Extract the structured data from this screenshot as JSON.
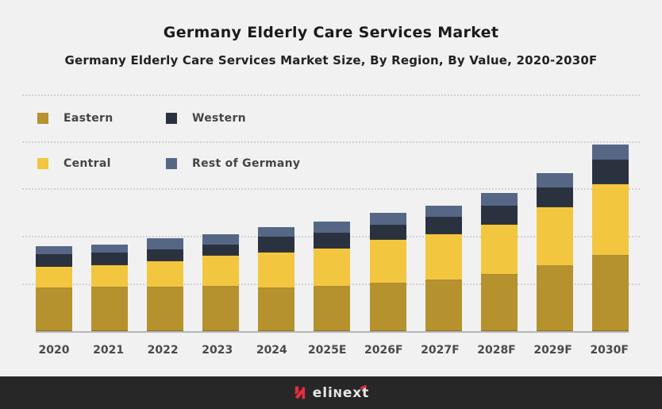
{
  "header": {
    "title": "Germany Elderly Care Services Market",
    "subtitle": "Germany Elderly Care Services Market Size, By Region, By Value, 2020-2030F"
  },
  "legend": {
    "items": [
      {
        "label": "Eastern",
        "color": "#b5922d"
      },
      {
        "label": "Western",
        "color": "#2b323f"
      },
      {
        "label": "Central",
        "color": "#f3c640"
      },
      {
        "label": "Rest of Germany",
        "color": "#566786"
      }
    ]
  },
  "chart_data": {
    "type": "bar",
    "stacked": true,
    "title": "Germany Elderly Care Services Market",
    "subtitle": "Germany Elderly Care Services Market Size, By Region, By Value, 2020-2030F",
    "xlabel": "",
    "ylabel": "",
    "value_units": "relative height units (y-axis is unlabeled in the figure; values estimated from bar pixel heights, 1 unit = 1 px)",
    "grid": "horizontal dotted gridlines, no y-axis tick labels",
    "legend_position": "top-left inside plot area, two rows",
    "categories": [
      "2020",
      "2021",
      "2022",
      "2023",
      "2024",
      "2025E",
      "2026F",
      "2027F",
      "2028F",
      "2029F",
      "2030F"
    ],
    "series": [
      {
        "name": "Eastern",
        "color": "#b5922d",
        "values": [
          54,
          55,
          55,
          56,
          54,
          56,
          60,
          64,
          71,
          82,
          95
        ]
      },
      {
        "name": "Central",
        "color": "#f3c640",
        "values": [
          27,
          28,
          33,
          39,
          45,
          48,
          55,
          58,
          63,
          74,
          90
        ]
      },
      {
        "name": "Western",
        "color": "#2b323f",
        "values": [
          16,
          16,
          15,
          14,
          20,
          20,
          19,
          22,
          24,
          25,
          31
        ]
      },
      {
        "name": "Rest of Germany",
        "color": "#566786",
        "values": [
          10,
          10,
          14,
          13,
          12,
          14,
          15,
          14,
          16,
          18,
          19
        ]
      }
    ],
    "stack_order_bottom_to_top": [
      "Eastern",
      "Central",
      "Western",
      "Rest of Germany"
    ],
    "totals": [
      107,
      109,
      117,
      122,
      131,
      138,
      149,
      158,
      174,
      199,
      235
    ]
  },
  "style": {
    "background": "#f1f1f2",
    "gridline_color": "#d1d1d1",
    "baseline_color": "#b6b6bb",
    "footer_background": "#272727",
    "logo_red": "#e62e3e",
    "logo_text_color": "#e7e7e7"
  },
  "footer": {
    "brand": "elinext",
    "parts": {
      "p0": "eli",
      "p1": "N",
      "p2": "ex",
      "p3": "t"
    }
  }
}
